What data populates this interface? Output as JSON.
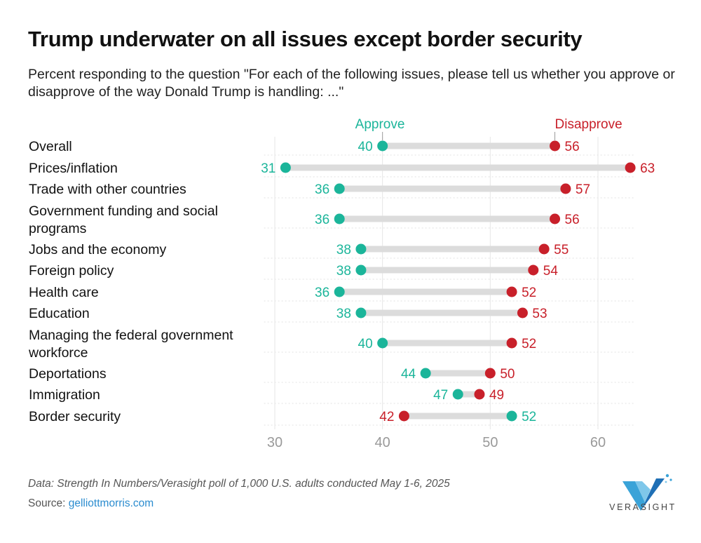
{
  "header": {
    "title": "Trump underwater on all issues except border security",
    "subtitle": "Percent responding to the question \"For each of the following issues, please tell us whether you approve or disapprove of the way Donald Trump is handling: ...\""
  },
  "chart_data": {
    "type": "dot-range",
    "categories": [
      "Overall",
      "Prices/inflation",
      "Trade with other countries",
      "Government funding and social programs",
      "Jobs and the economy",
      "Foreign policy",
      "Health care",
      "Education",
      "Managing the federal government workforce",
      "Deportations",
      "Immigration",
      "Border security"
    ],
    "series": [
      {
        "name": "Approve",
        "color": "#1bb59a",
        "values": [
          40,
          31,
          36,
          36,
          38,
          38,
          36,
          38,
          40,
          44,
          47,
          52
        ]
      },
      {
        "name": "Disapprove",
        "color": "#c8202a",
        "values": [
          56,
          63,
          57,
          56,
          55,
          54,
          52,
          53,
          52,
          50,
          49,
          42
        ]
      }
    ],
    "x_ticks": [
      30,
      40,
      50,
      60
    ],
    "xlim": [
      29,
      64
    ],
    "grid": true,
    "legend": "top, labels above first row"
  },
  "footer": {
    "note": "Data: Strength In Numbers/Verasight poll of 1,000 U.S. adults conducted May 1-6, 2025",
    "source_label": "Source: ",
    "source_link": "gelliottmorris.com",
    "logo_text": "VERASIGHT"
  }
}
